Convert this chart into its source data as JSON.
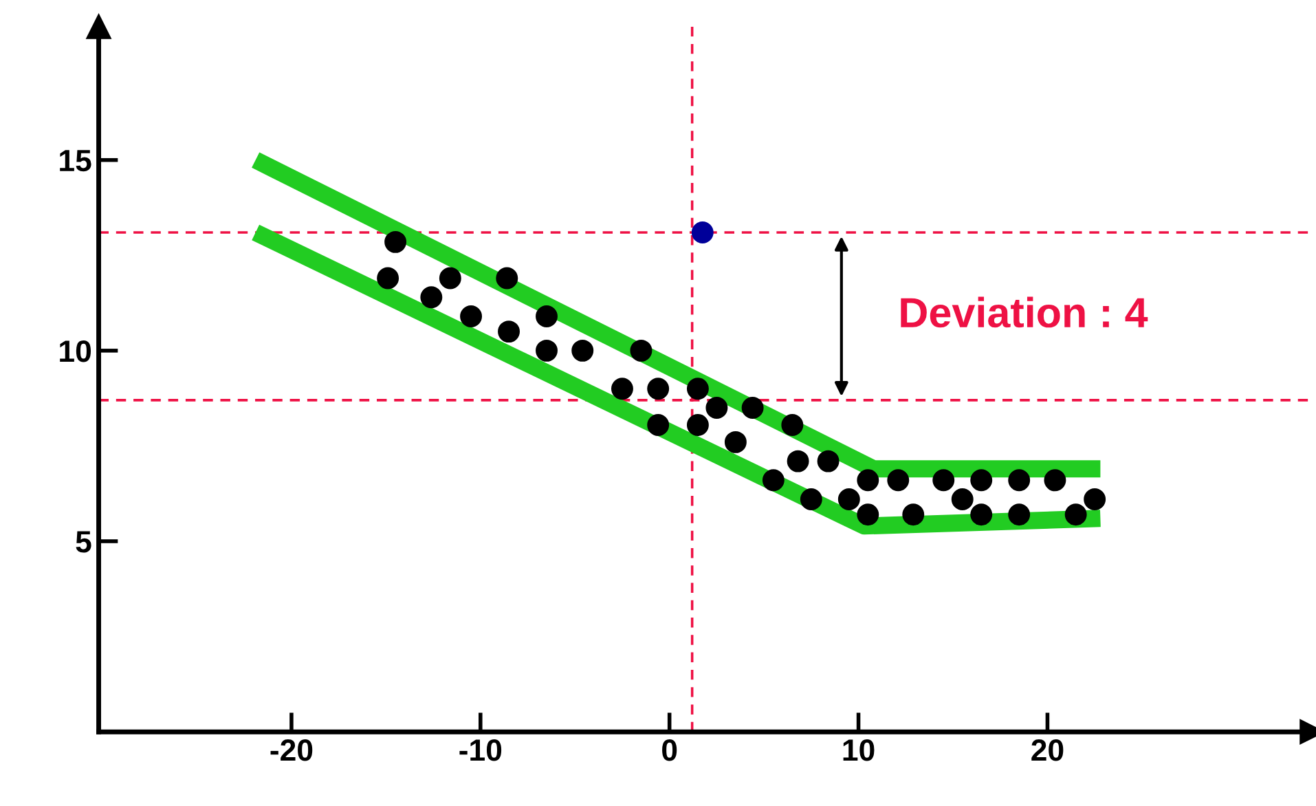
{
  "chart_data": {
    "type": "scatter",
    "xlim": [
      -30.2,
      34
    ],
    "ylim": [
      0,
      18.5
    ],
    "xticks": [
      -20,
      -10,
      0,
      10,
      20
    ],
    "yticks": [
      5,
      10,
      15
    ],
    "grid": false,
    "legend": false,
    "series": [
      {
        "type": "line",
        "color": "#22cc22",
        "x": [
          -21.9,
          10.8,
          22.8
        ],
        "values": [
          15.0,
          6.9,
          6.9
        ]
      },
      {
        "type": "line",
        "color": "#22cc22",
        "x": [
          -21.9,
          10.3,
          22.8
        ],
        "values": [
          13.1,
          5.4,
          5.6
        ]
      },
      {
        "marker": "circle",
        "color": "#000000",
        "x": [
          -14.5,
          -14.9,
          -12.6,
          -11.6,
          -10.5,
          -8.6,
          -8.5,
          -6.5,
          -6.5,
          -4.6,
          -2.5,
          -1.5,
          -0.6,
          -0.6,
          1.5,
          1.5,
          2.5,
          3.5,
          4.4,
          5.5,
          6.5,
          6.8,
          7.5,
          8.4,
          9.5,
          10.5,
          10.5,
          12.1,
          12.9,
          14.5,
          15.5,
          16.5,
          16.5,
          18.5,
          18.5,
          20.4,
          21.5,
          22.5
        ],
        "values": [
          12.85,
          11.9,
          11.4,
          11.9,
          10.9,
          11.9,
          10.5,
          10.9,
          10.0,
          10.0,
          9.0,
          10.0,
          9.0,
          8.05,
          9.0,
          8.05,
          8.5,
          7.6,
          8.5,
          6.6,
          8.05,
          7.1,
          6.1,
          7.1,
          6.1,
          6.6,
          5.7,
          6.6,
          5.7,
          6.6,
          6.1,
          6.6,
          5.7,
          6.6,
          5.7,
          6.6,
          5.7,
          6.1
        ]
      },
      {
        "marker": "circle",
        "color": "#000099",
        "x": [
          1.75
        ],
        "values": [
          13.1
        ]
      }
    ],
    "ref_lines": [
      {
        "axis": "y",
        "value": 13.1,
        "color": "#ee1144",
        "line_style": "dashed"
      },
      {
        "axis": "y",
        "value": 8.7,
        "color": "#ee1144",
        "line_style": "dashed"
      },
      {
        "axis": "x",
        "value": 1.2,
        "color": "#ee1144",
        "line_style": "dashed"
      }
    ],
    "annotations": [
      {
        "text": "Deviation : 4",
        "x": 9.1,
        "y": 13.1
      }
    ]
  }
}
